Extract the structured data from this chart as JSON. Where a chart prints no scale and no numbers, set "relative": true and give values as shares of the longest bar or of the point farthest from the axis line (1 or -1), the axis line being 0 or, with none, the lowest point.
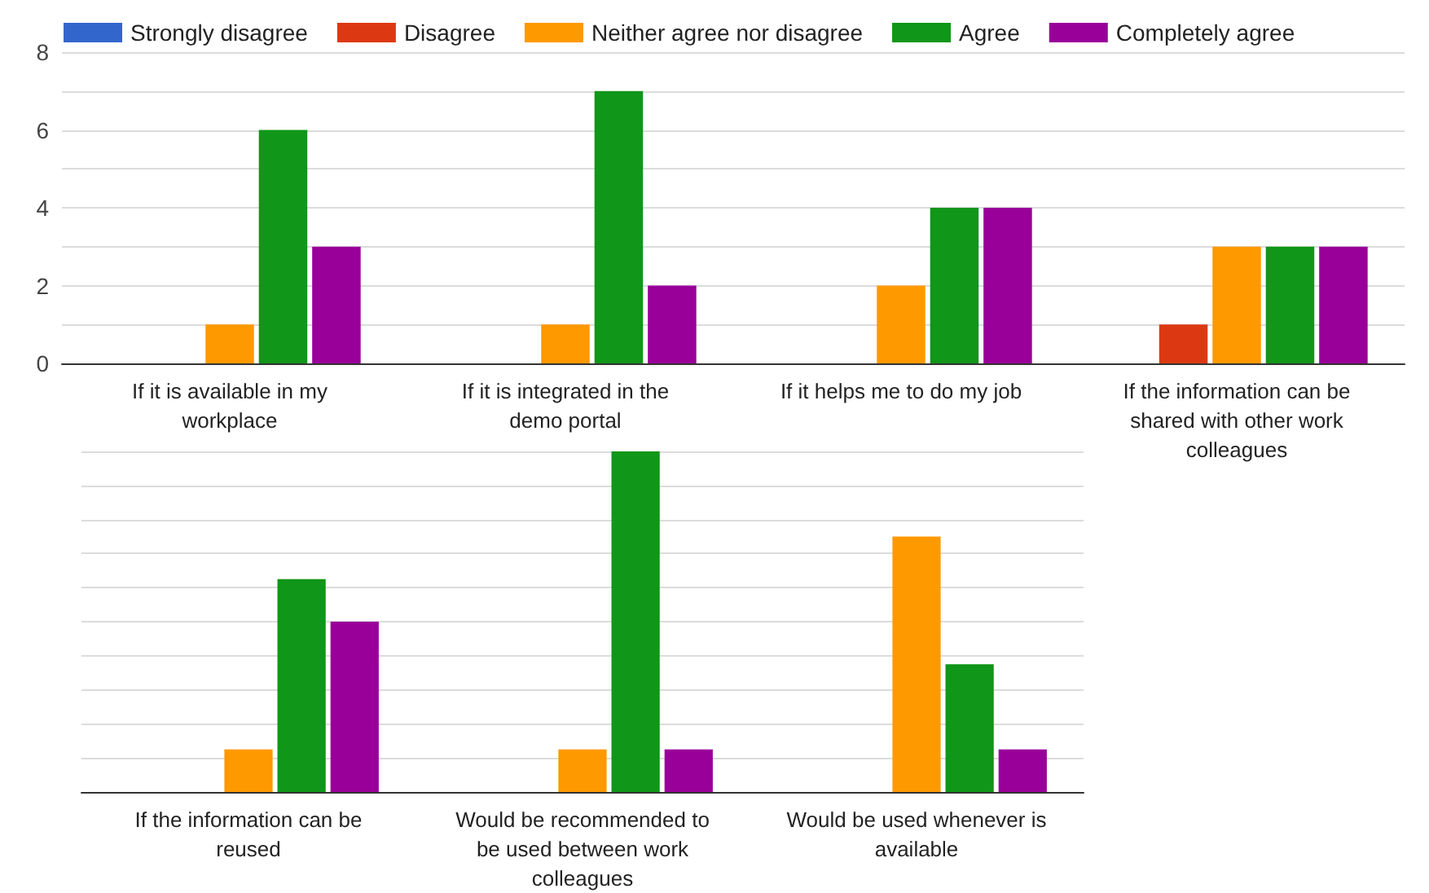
{
  "chart_data": [
    {
      "type": "bar",
      "categories": [
        "If it is available in my workplace",
        "If it is integrated in the demo portal",
        "If it helps me to do my job",
        "If the information can be shared with other work colleagues"
      ],
      "series": [
        {
          "name": "Strongly disagree",
          "color": "#3366cc",
          "values": [
            0,
            0,
            0,
            0
          ]
        },
        {
          "name": "Disagree",
          "color": "#dc3912",
          "values": [
            0,
            0,
            0,
            1
          ]
        },
        {
          "name": "Neither agree nor disagree",
          "color": "#ff9900",
          "values": [
            1,
            1,
            2,
            3
          ]
        },
        {
          "name": "Agree",
          "color": "#109618",
          "values": [
            6,
            7,
            4,
            3
          ]
        },
        {
          "name": "Completely agree",
          "color": "#990099",
          "values": [
            3,
            2,
            4,
            3
          ]
        }
      ],
      "ylim": [
        0,
        8
      ],
      "yticks": [
        0,
        {
          "value": 1,
          "label": null
        },
        2,
        {
          "value": 3,
          "label": null
        },
        4,
        {
          "value": 5,
          "label": null
        },
        6,
        {
          "value": 7,
          "label": null
        },
        8
      ],
      "grid": "y",
      "legend": "top"
    },
    {
      "type": "bar",
      "categories": [
        "If the information can be reused",
        "Would be recommended to be used between work colleagues",
        "Would be used whenever is available"
      ],
      "series": [
        {
          "color": "#3366cc",
          "values": [
            0,
            0,
            0
          ]
        },
        {
          "color": "#dc3912",
          "values": [
            0,
            0,
            0
          ]
        },
        {
          "color": "#ff9900",
          "values": [
            0.125,
            0.125,
            0.75
          ]
        },
        {
          "color": "#109618",
          "values": [
            0.625,
            1,
            0.375
          ]
        },
        {
          "color": "#990099",
          "values": [
            0.5,
            0.125,
            0.125
          ]
        }
      ],
      "relative": true,
      "grid": "y",
      "tick_labels": "x"
    }
  ]
}
